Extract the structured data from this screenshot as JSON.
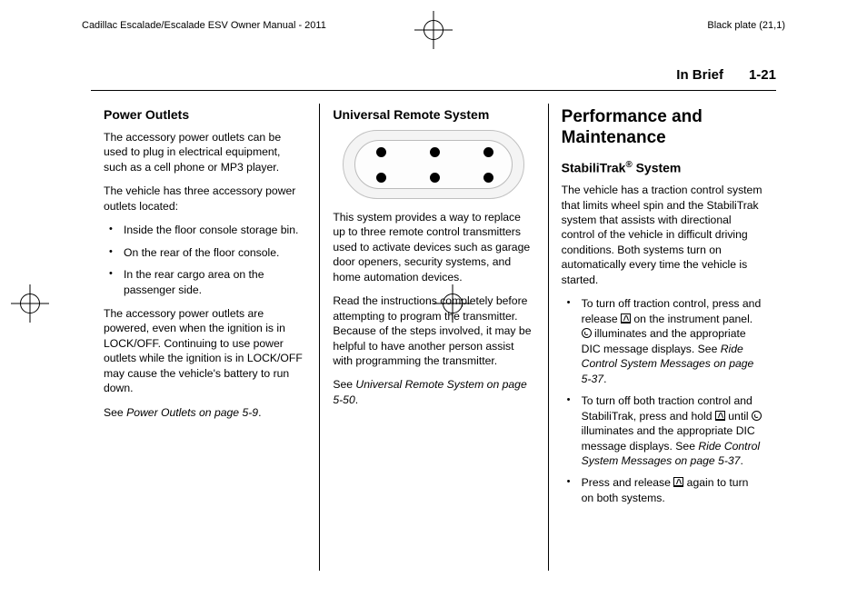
{
  "top": {
    "manual_title": "Cadillac Escalade/Escalade ESV Owner Manual - 2011",
    "plate": "Black plate (21,1)"
  },
  "header": {
    "section": "In Brief",
    "page": "1-21"
  },
  "col1": {
    "title": "Power Outlets",
    "p1": "The accessory power outlets can be used to plug in electrical equipment, such as a cell phone or MP3 player.",
    "p2": "The vehicle has three accessory power outlets located:",
    "bullets": [
      "Inside the floor console storage bin.",
      "On the rear of the floor console.",
      "In the rear cargo area on the passenger side."
    ],
    "p3": "The accessory power outlets are powered, even when the ignition is in LOCK/OFF. Continuing to use power outlets while the ignition is in LOCK/OFF may cause the vehicle's battery to run down.",
    "p4_pre": "See ",
    "p4_ref": "Power Outlets on page 5-9",
    "p4_post": "."
  },
  "col2": {
    "title": "Universal Remote System",
    "p1": "This system provides a way to replace up to three remote control transmitters used to activate devices such as garage door openers, security systems, and home automation devices.",
    "p2": "Read the instructions completely before attempting to program the transmitter. Because of the steps involved, it may be helpful to have another person assist with programming the transmitter.",
    "p3_pre": "See ",
    "p3_ref": "Universal Remote System on page 5-50",
    "p3_post": "."
  },
  "col3": {
    "big_title": "Performance and Maintenance",
    "sub_title_pre": "StabiliTrak",
    "sub_title_sup": "®",
    "sub_title_post": " System",
    "p1": "The vehicle has a traction control system that limits wheel spin and the StabiliTrak system that assists with directional control of the vehicle in difficult driving conditions. Both systems turn on automatically every time the vehicle is started.",
    "b1_a": "To turn off traction control, press and release ",
    "b1_b": " on the instrument panel. ",
    "b1_c": " illuminates and the appropriate DIC message displays. See ",
    "b1_ref": "Ride Control System Messages on page 5-37",
    "b1_d": ".",
    "b2_a": "To turn off both traction control and StabiliTrak, press and hold ",
    "b2_b": " until ",
    "b2_c": " illuminates and the appropriate DIC message displays. See ",
    "b2_ref": "Ride Control System Messages on page 5-37",
    "b2_d": ".",
    "b3_a": "Press and release ",
    "b3_b": " again to turn on both systems."
  }
}
